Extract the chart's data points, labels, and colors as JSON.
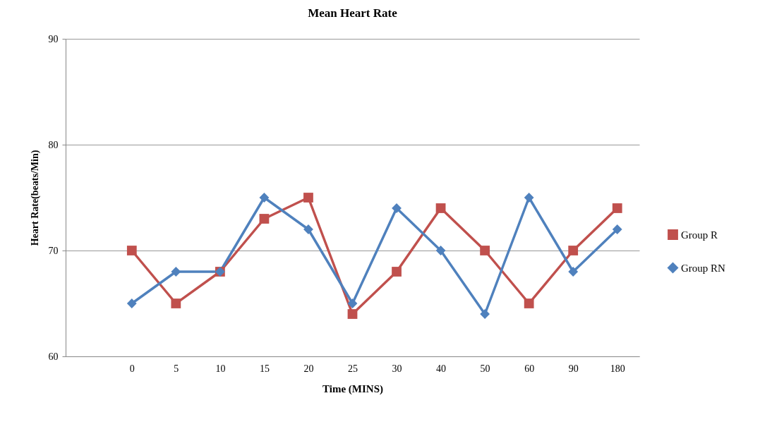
{
  "chart_data": {
    "type": "line",
    "title": "Mean Heart Rate",
    "xlabel": "Time (MINS)",
    "ylabel": "Heart Rate(beats/Min)",
    "categories": [
      null,
      "0",
      "5",
      "10",
      "15",
      "20",
      "25",
      "30",
      "40",
      "50",
      "60",
      "90",
      "180"
    ],
    "series": [
      {
        "name": "Group R",
        "color": "#c0504d",
        "marker": "square",
        "values": [
          null,
          70,
          65,
          68,
          73,
          75,
          64,
          68,
          74,
          70,
          65,
          70,
          74
        ]
      },
      {
        "name": "Group RN",
        "color": "#4f81bd",
        "marker": "diamond",
        "values": [
          null,
          65,
          68,
          68,
          75,
          72,
          65,
          74,
          70,
          64,
          75,
          68,
          72
        ]
      }
    ],
    "ylim": [
      60,
      90
    ],
    "yticks": [
      60,
      70,
      80,
      90
    ],
    "grid": "y",
    "legend": "right"
  }
}
